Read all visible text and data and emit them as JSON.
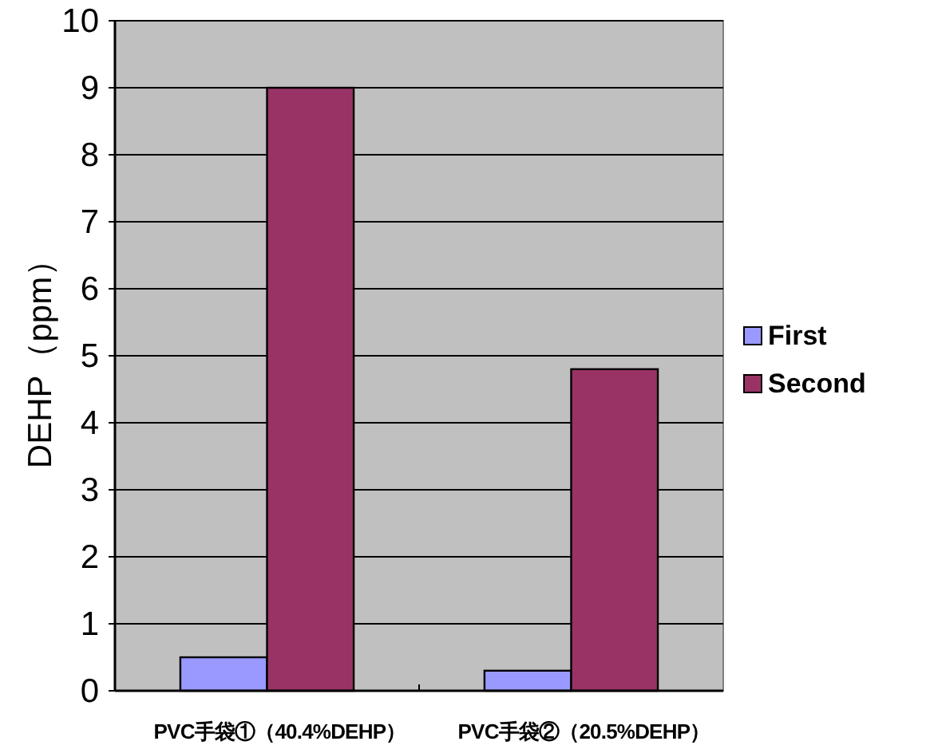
{
  "chart_data": {
    "type": "bar",
    "ylabel": "DEHP（ppm）",
    "categories": [
      "PVC手袋①（40.4%DEHP）",
      "PVC手袋②（20.5%DEHP）"
    ],
    "series": [
      {
        "name": "First",
        "color": "#9999ff",
        "values": [
          0.5,
          0.3
        ]
      },
      {
        "name": "Second",
        "color": "#993366",
        "values": [
          9.0,
          4.8
        ]
      }
    ],
    "ylim": [
      0,
      10
    ],
    "yticks": [
      0,
      1,
      2,
      3,
      4,
      5,
      6,
      7,
      8,
      9,
      10
    ],
    "grid": "y",
    "legend": "right"
  }
}
